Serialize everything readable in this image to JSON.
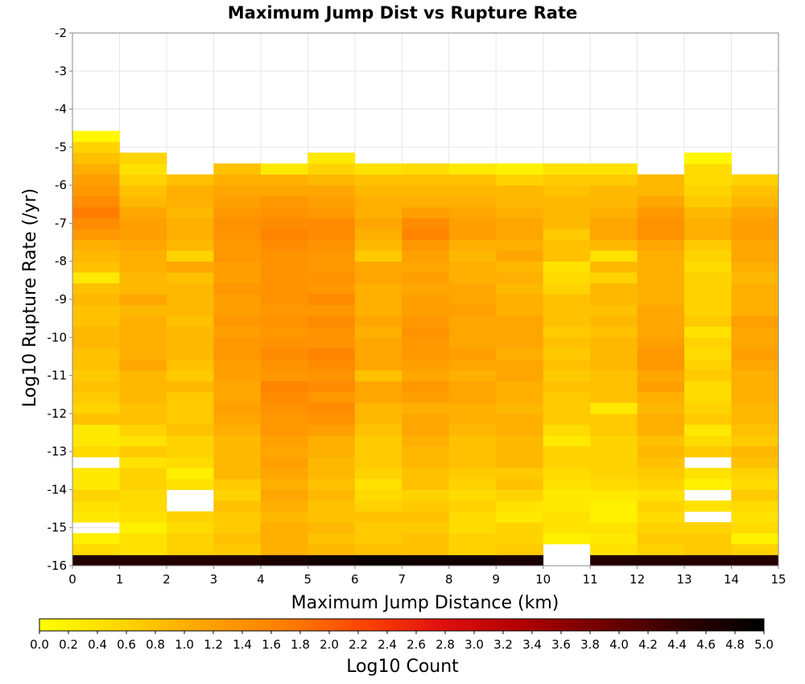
{
  "chart_data": {
    "type": "heatmap",
    "title": "Maximum Jump Dist vs Rupture Rate",
    "xlabel": "Maximum Jump Distance (km)",
    "ylabel": "Log10 Rupture Rate (/yr)",
    "xlim": [
      0,
      15
    ],
    "ylim": [
      -16,
      -2
    ],
    "x_ticks": [
      "0",
      "1",
      "2",
      "3",
      "4",
      "5",
      "6",
      "7",
      "8",
      "9",
      "10",
      "11",
      "12",
      "13",
      "14",
      "15"
    ],
    "y_ticks": [
      "-2",
      "-3",
      "-4",
      "-5",
      "-6",
      "-7",
      "-8",
      "-9",
      "-10",
      "-11",
      "-12",
      "-13",
      "-14",
      "-15",
      "-16"
    ],
    "x_bin_width": 1,
    "y_bin_height": 0.2857,
    "y_bin_start": -16,
    "grid": true,
    "colorbar": {
      "title": "Log10 Count",
      "min": 0.0,
      "max": 5.0,
      "ticks": [
        "0.0",
        "0.2",
        "0.4",
        "0.6",
        "0.8",
        "1.0",
        "1.2",
        "1.4",
        "1.6",
        "1.8",
        "2.0",
        "2.2",
        "2.4",
        "2.6",
        "2.8",
        "3.0",
        "3.2",
        "3.4",
        "3.6",
        "3.8",
        "4.0",
        "4.2",
        "4.4",
        "4.6",
        "4.8",
        "5.0"
      ],
      "colors": [
        "#ffff00",
        "#ffd700",
        "#ffa500",
        "#ff8000",
        "#ff4500",
        "#e01010",
        "#b00000",
        "#700000",
        "#300000",
        "#000000"
      ]
    },
    "x_bins": [
      0.5,
      1.5,
      2.5,
      3.5,
      4.5,
      5.5,
      6.5,
      7.5,
      8.5,
      9.5,
      10.5,
      11.5,
      12.5,
      13.5,
      14.5
    ],
    "z_note_rows_bottom_to_top": "rows[0] is the bin starting at -16; null = empty bin",
    "rows": [
      [
        4.6,
        4.6,
        4.6,
        4.6,
        4.7,
        4.8,
        4.9,
        4.8,
        4.8,
        4.7,
        null,
        4.6,
        4.6,
        4.6,
        4.6
      ],
      [
        0.5,
        0.4,
        0.6,
        0.7,
        1.0,
        0.9,
        0.8,
        0.8,
        0.6,
        0.7,
        null,
        0.4,
        0.6,
        0.7,
        0.6
      ],
      [
        0.2,
        0.4,
        0.6,
        0.8,
        1.0,
        0.8,
        0.7,
        0.8,
        0.6,
        0.6,
        0.2,
        0.3,
        0.7,
        0.7,
        0.2
      ],
      [
        null,
        0.2,
        0.5,
        0.7,
        1.0,
        0.9,
        0.7,
        0.7,
        0.5,
        0.6,
        0.4,
        0.4,
        0.6,
        0.6,
        0.5
      ],
      [
        0.3,
        0.4,
        0.6,
        0.7,
        0.9,
        0.8,
        0.8,
        0.8,
        0.5,
        0.3,
        0.4,
        0.2,
        0.5,
        null,
        0.4
      ],
      [
        0.4,
        0.5,
        null,
        0.8,
        1.0,
        0.8,
        0.6,
        0.7,
        0.6,
        0.4,
        0.3,
        0.2,
        0.6,
        0.4,
        0.5
      ],
      [
        0.6,
        0.5,
        null,
        0.6,
        1.1,
        0.9,
        0.5,
        0.6,
        0.5,
        0.6,
        0.3,
        0.3,
        0.4,
        null,
        0.7
      ],
      [
        0.3,
        0.6,
        0.4,
        0.7,
        1.0,
        0.8,
        0.4,
        0.8,
        0.6,
        0.8,
        0.4,
        0.5,
        0.6,
        0.2,
        0.5
      ],
      [
        0.3,
        0.6,
        0.2,
        0.9,
        1.1,
        0.9,
        0.6,
        0.8,
        0.7,
        0.7,
        0.5,
        0.6,
        0.7,
        0.4,
        0.6
      ],
      [
        null,
        0.4,
        0.5,
        0.9,
        1.2,
        0.9,
        0.7,
        0.9,
        0.8,
        0.9,
        0.6,
        0.6,
        0.8,
        null,
        0.8
      ],
      [
        0.5,
        0.7,
        0.6,
        0.9,
        1.1,
        1.0,
        0.7,
        0.9,
        0.8,
        0.9,
        0.6,
        0.6,
        0.9,
        0.7,
        0.9
      ],
      [
        0.3,
        0.4,
        0.6,
        0.9,
        1.2,
        1.0,
        0.7,
        1.0,
        0.8,
        0.9,
        0.3,
        0.6,
        0.8,
        0.5,
        0.7
      ],
      [
        0.3,
        0.6,
        0.8,
        1.0,
        1.3,
        1.2,
        0.8,
        1.1,
        0.9,
        1.0,
        0.5,
        0.7,
        1.0,
        0.3,
        0.8
      ],
      [
        0.8,
        0.8,
        0.7,
        1.1,
        1.3,
        1.4,
        0.9,
        1.1,
        1.0,
        1.0,
        0.7,
        0.7,
        1.0,
        0.7,
        0.9
      ],
      [
        0.6,
        0.8,
        0.7,
        1.2,
        1.4,
        1.5,
        0.9,
        1.0,
        1.0,
        0.9,
        0.7,
        0.3,
        0.9,
        0.6,
        0.9
      ],
      [
        0.7,
        0.9,
        0.7,
        1.1,
        1.5,
        1.3,
        1.1,
        1.2,
        1.1,
        1.0,
        0.7,
        0.8,
        1.0,
        0.5,
        1.0
      ],
      [
        0.8,
        0.9,
        0.9,
        1.1,
        1.6,
        1.5,
        1.1,
        1.3,
        1.1,
        1.0,
        0.8,
        0.8,
        1.2,
        0.5,
        1.0
      ],
      [
        0.7,
        0.9,
        0.7,
        1.2,
        1.3,
        1.4,
        0.8,
        1.1,
        1.0,
        1.1,
        0.7,
        0.8,
        1.1,
        0.7,
        1.0
      ],
      [
        0.8,
        1.1,
        0.8,
        1.2,
        1.4,
        1.5,
        1.1,
        1.2,
        1.1,
        1.1,
        0.8,
        0.9,
        1.3,
        0.6,
        1.1
      ],
      [
        0.8,
        1.0,
        0.9,
        1.3,
        1.5,
        1.6,
        1.1,
        1.3,
        1.2,
        1.0,
        0.7,
        0.9,
        1.3,
        0.5,
        1.2
      ],
      [
        0.9,
        1.0,
        0.9,
        1.3,
        1.4,
        1.4,
        1.1,
        1.3,
        1.1,
        1.1,
        0.8,
        0.9,
        1.2,
        0.6,
        1.1
      ],
      [
        0.9,
        1.0,
        0.9,
        1.2,
        1.3,
        1.4,
        1.0,
        1.4,
        1.1,
        1.1,
        0.7,
        0.8,
        1.1,
        0.4,
        1.1
      ],
      [
        0.8,
        1.0,
        0.8,
        1.3,
        1.4,
        1.5,
        1.1,
        1.3,
        1.1,
        1.1,
        0.8,
        0.9,
        1.1,
        0.7,
        1.2
      ],
      [
        0.8,
        0.9,
        0.9,
        1.2,
        1.3,
        1.3,
        1.0,
        1.2,
        1.2,
        1.0,
        0.8,
        0.8,
        1.1,
        0.6,
        1.0
      ],
      [
        0.9,
        1.1,
        0.9,
        1.2,
        1.4,
        1.5,
        1.0,
        1.2,
        1.1,
        1.0,
        0.8,
        0.9,
        1.0,
        0.6,
        1.0
      ],
      [
        0.8,
        0.9,
        0.9,
        1.3,
        1.4,
        1.3,
        1.0,
        1.1,
        1.1,
        0.9,
        0.6,
        0.9,
        1.0,
        0.6,
        1.0
      ],
      [
        0.3,
        0.9,
        0.8,
        1.2,
        1.4,
        1.4,
        1.1,
        1.2,
        1.0,
        1.0,
        0.5,
        0.6,
        1.0,
        0.6,
        0.9
      ],
      [
        0.8,
        1.0,
        1.1,
        1.2,
        1.4,
        1.3,
        1.1,
        1.1,
        1.0,
        0.9,
        0.4,
        0.9,
        1.0,
        0.5,
        1.0
      ],
      [
        0.9,
        1.0,
        0.6,
        1.3,
        1.4,
        1.3,
        0.7,
        1.2,
        0.9,
        1.1,
        0.8,
        0.4,
        1.0,
        0.6,
        1.1
      ],
      [
        1.0,
        1.1,
        0.9,
        1.3,
        1.5,
        1.4,
        0.9,
        1.3,
        1.0,
        1.0,
        0.8,
        0.9,
        1.1,
        0.7,
        1.1
      ],
      [
        1.3,
        1.2,
        1.0,
        1.4,
        1.6,
        1.5,
        1.0,
        1.6,
        1.2,
        1.1,
        0.7,
        1.1,
        1.4,
        1.0,
        1.2
      ],
      [
        1.5,
        1.2,
        1.0,
        1.4,
        1.5,
        1.5,
        1.1,
        1.5,
        1.2,
        1.1,
        0.9,
        1.1,
        1.4,
        1.0,
        1.2
      ],
      [
        1.7,
        1.1,
        0.9,
        1.3,
        1.4,
        1.3,
        1.0,
        1.2,
        1.1,
        1.0,
        0.9,
        1.0,
        1.3,
        0.9,
        1.1
      ],
      [
        1.5,
        0.9,
        1.0,
        1.2,
        1.3,
        1.2,
        1.0,
        1.0,
        1.0,
        0.9,
        0.9,
        0.9,
        1.1,
        0.7,
        0.9
      ],
      [
        1.3,
        0.8,
        1.0,
        1.1,
        1.1,
        1.1,
        0.9,
        0.9,
        0.9,
        0.9,
        0.8,
        0.9,
        0.9,
        0.6,
        0.8
      ],
      [
        1.2,
        0.6,
        0.8,
        1.0,
        1.0,
        0.9,
        0.8,
        0.8,
        0.8,
        0.6,
        0.7,
        0.7,
        0.9,
        0.5,
        0.6
      ],
      [
        1.0,
        0.4,
        null,
        0.8,
        0.3,
        0.6,
        0.4,
        0.5,
        0.3,
        0.2,
        0.4,
        0.4,
        null,
        0.5,
        null
      ],
      [
        0.8,
        0.6,
        null,
        null,
        null,
        0.3,
        null,
        null,
        null,
        null,
        null,
        null,
        null,
        0.1,
        null
      ],
      [
        0.6,
        null,
        null,
        null,
        null,
        null,
        null,
        null,
        null,
        null,
        null,
        null,
        null,
        null,
        null
      ],
      [
        0.1,
        null,
        null,
        null,
        null,
        null,
        null,
        null,
        null,
        null,
        null,
        null,
        null,
        null,
        null
      ]
    ]
  }
}
